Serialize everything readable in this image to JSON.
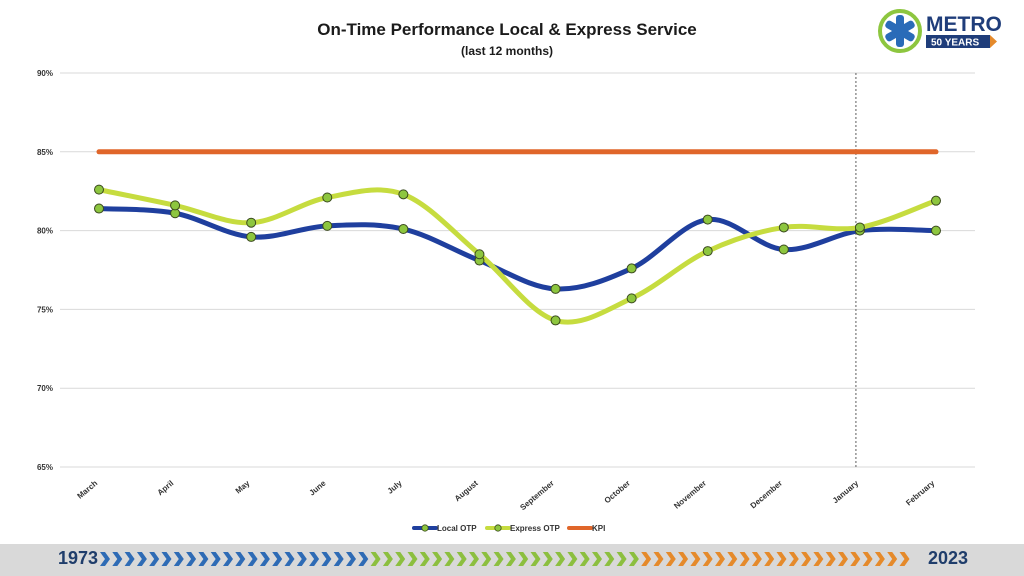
{
  "logo": {
    "brand": "METRO",
    "tagline": "50 YEARS"
  },
  "footer": {
    "start_year": "1973",
    "end_year": "2023",
    "chevron_colors": [
      "#2e6bb5",
      "#8cbf3f",
      "#e58a2b"
    ]
  },
  "chart_data": {
    "type": "line",
    "title": "On-Time Performance Local & Express Service",
    "subtitle": "(last 12 months)",
    "categories": [
      "March",
      "April",
      "May",
      "June",
      "July",
      "August",
      "September",
      "October",
      "November",
      "December",
      "January",
      "February"
    ],
    "y_ticks": [
      0.65,
      0.7,
      0.75,
      0.8,
      0.85,
      0.9
    ],
    "y_tick_labels": [
      "65%",
      "70%",
      "75%",
      "80%",
      "85%",
      "90%"
    ],
    "ylim": [
      0.65,
      0.9
    ],
    "grid": true,
    "legend_position": "bottom",
    "reference_line_after": "January",
    "series": [
      {
        "name": "Local OTP",
        "color": "#1f3f9e",
        "marker_color": "#8dc63f",
        "values": [
          0.814,
          0.811,
          0.796,
          0.803,
          0.801,
          0.781,
          0.763,
          0.776,
          0.807,
          0.788,
          0.8,
          0.8
        ]
      },
      {
        "name": "Express OTP",
        "color": "#c6dc3f",
        "marker_color": "#8dc63f",
        "values": [
          0.826,
          0.816,
          0.805,
          0.821,
          0.823,
          0.785,
          0.743,
          0.757,
          0.787,
          0.802,
          0.802,
          0.819
        ]
      },
      {
        "name": "KPI",
        "color": "#e0662a",
        "marker_color": null,
        "values": [
          0.85,
          0.85,
          0.85,
          0.85,
          0.85,
          0.85,
          0.85,
          0.85,
          0.85,
          0.85,
          0.85,
          0.85
        ]
      }
    ]
  }
}
